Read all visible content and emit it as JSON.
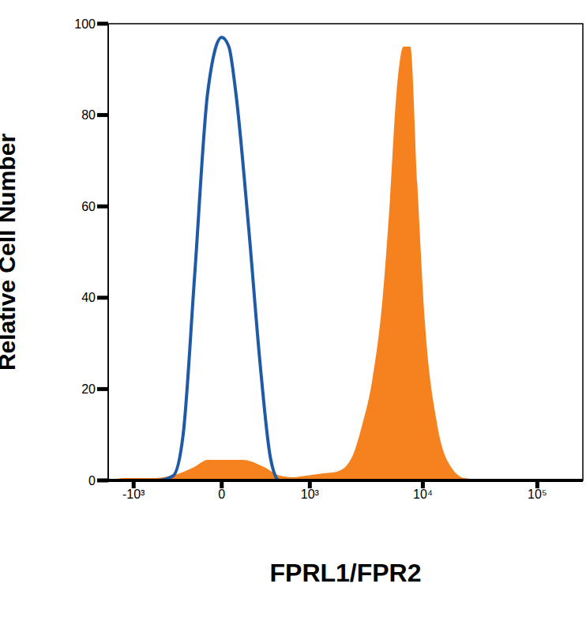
{
  "chart_data": {
    "type": "histogram",
    "x_label": "FPRL1/FPR2",
    "y_label": "Relative Cell Number",
    "xlim": [
      -1700,
      250000
    ],
    "xticks": [
      {
        "value": -1000,
        "label": "-10³"
      },
      0,
      {
        "value": 1000,
        "label": "10³"
      },
      {
        "value": 10000,
        "label": "10⁴"
      },
      {
        "value": 100000,
        "label": "10⁵"
      }
    ],
    "ylim": [
      0,
      100
    ],
    "yticks": [
      0,
      20,
      40,
      60,
      80,
      100
    ],
    "grid": false,
    "series": [
      {
        "type": "area",
        "color": "#f5821f",
        "x": [
          -1700,
          -1200,
          -700,
          -420,
          -200,
          -100,
          0,
          150,
          330,
          520,
          700,
          900,
          1300,
          1800,
          2380,
          2930,
          3610,
          4450,
          5110,
          5890,
          6770,
          7770,
          8940,
          10400,
          13400,
          17600,
          23300,
          40000,
          250000
        ],
        "values": [
          0,
          0.5,
          0.5,
          1,
          3,
          4.5,
          4.5,
          4.5,
          3,
          1,
          0.7,
          1,
          1.5,
          2,
          5,
          12,
          22,
          40,
          60,
          85,
          95,
          95,
          65,
          35,
          12,
          3,
          0.5,
          0,
          0
        ]
      },
      {
        "type": "line",
        "color": "#1f5aa6",
        "x": [
          -1700,
          -600,
          -400,
          -300,
          -200,
          -100,
          0,
          50,
          100,
          200,
          300,
          400,
          500,
          700,
          250000
        ],
        "values": [
          0,
          0,
          1,
          10,
          45,
          85,
          97,
          95,
          85,
          55,
          25,
          5,
          0,
          0,
          0
        ]
      }
    ]
  }
}
